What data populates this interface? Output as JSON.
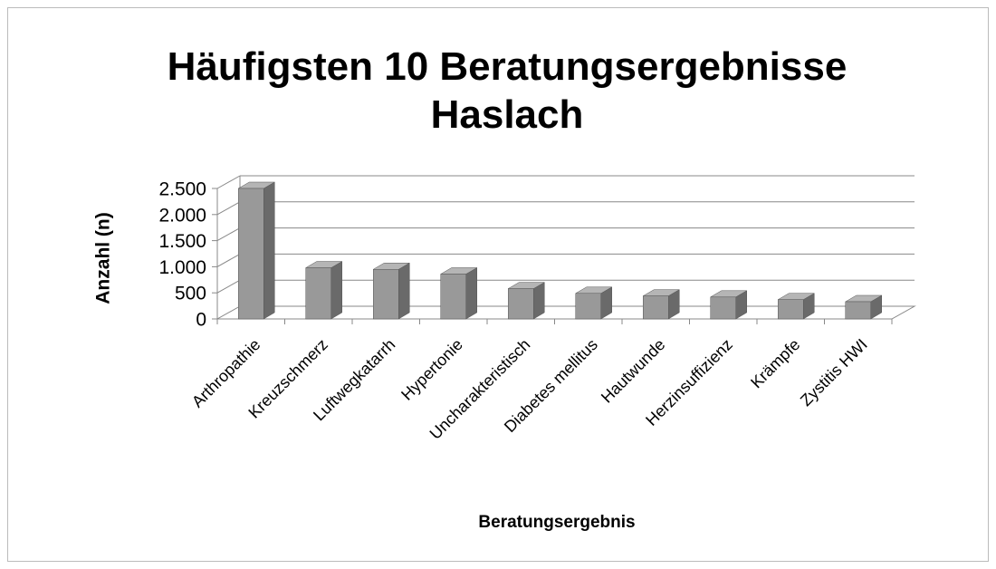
{
  "chart_data": {
    "type": "bar3d",
    "title": "Häufigsten 10 Beratungsergebnisse Haslach",
    "x_label": "Beratungsergebnis",
    "y_label": "Anzahl (n)",
    "categories": [
      "Arthropathie",
      "Kreuzschmerz",
      "Luftwegkatarrh",
      "Hypertonie",
      "Uncharakteristisch",
      "Diabetes mellitus",
      "Hautwunde",
      "Herzinsuffizienz",
      "Krämpfe",
      "Zystitis HWI"
    ],
    "values": [
      2500,
      980,
      950,
      860,
      580,
      490,
      440,
      420,
      370,
      330
    ],
    "color": "#999999",
    "ylim": [
      0,
      2500
    ],
    "yticks": [
      0,
      500,
      {
        "value": 1000,
        "label": "1.000"
      },
      {
        "value": 1500,
        "label": "1.500"
      },
      {
        "value": 2000,
        "label": "2.000"
      },
      {
        "value": 2500,
        "label": "2.500"
      }
    ],
    "grid": true
  }
}
